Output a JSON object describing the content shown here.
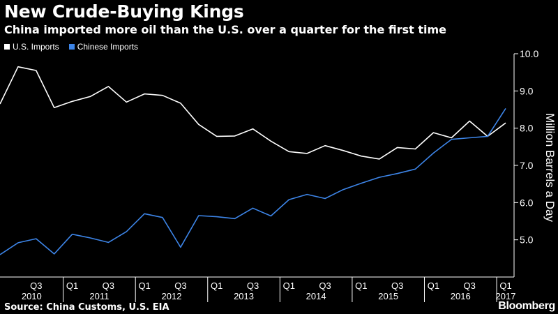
{
  "header": {
    "title": "New Crude-Buying Kings",
    "subtitle": "China imported more oil than the U.S. over a quarter for the first time"
  },
  "footer": {
    "source": "Source: China Customs, U.S. EIA",
    "logo": "Bloomberg"
  },
  "colors": {
    "background": "#000000",
    "us": "#ffffff",
    "china": "#3d85e8",
    "axis": "#ffffff"
  },
  "chart_data": {
    "type": "line",
    "x": [
      "2010-Q1",
      "2010-Q2",
      "2010-Q3",
      "2010-Q4",
      "2011-Q1",
      "2011-Q2",
      "2011-Q3",
      "2011-Q4",
      "2012-Q1",
      "2012-Q2",
      "2012-Q3",
      "2012-Q4",
      "2013-Q1",
      "2013-Q2",
      "2013-Q3",
      "2013-Q4",
      "2014-Q1",
      "2014-Q2",
      "2014-Q3",
      "2014-Q4",
      "2015-Q1",
      "2015-Q2",
      "2015-Q3",
      "2015-Q4",
      "2016-Q1",
      "2016-Q2",
      "2016-Q3",
      "2016-Q4",
      "2017-Q1"
    ],
    "series": [
      {
        "name": "U.S. Imports",
        "color": "#ffffff",
        "values": [
          8.65,
          9.65,
          9.55,
          8.55,
          8.72,
          8.85,
          9.12,
          8.7,
          8.92,
          8.88,
          8.67,
          8.1,
          7.78,
          7.79,
          7.98,
          7.65,
          7.37,
          7.32,
          7.53,
          7.4,
          7.25,
          7.17,
          7.48,
          7.44,
          7.88,
          7.74,
          8.19,
          7.78,
          8.14
        ]
      },
      {
        "name": "Chinese Imports",
        "color": "#3d85e8",
        "values": [
          4.6,
          4.92,
          5.03,
          4.62,
          5.15,
          5.05,
          4.93,
          5.22,
          5.7,
          5.6,
          4.8,
          5.65,
          5.62,
          5.57,
          5.85,
          5.64,
          6.08,
          6.22,
          6.11,
          6.35,
          6.52,
          6.68,
          6.78,
          6.9,
          7.33,
          7.7,
          7.74,
          7.78,
          8.53
        ]
      }
    ],
    "ylabel": "Million Barrels a Day",
    "ylim": [
      4.0,
      10.0
    ],
    "yticks": [
      {
        "value": 5,
        "label": "5.0"
      },
      {
        "value": 6,
        "label": "6.0"
      },
      {
        "value": 7,
        "label": "7.0"
      },
      {
        "value": 8,
        "label": "8.0"
      },
      {
        "value": 9,
        "label": "9.0"
      },
      {
        "value": 10,
        "label": "10.0"
      }
    ],
    "quarter_ticks": [
      {
        "index": 2,
        "label": "Q3"
      },
      {
        "index": 4,
        "label": "Q1"
      },
      {
        "index": 6,
        "label": "Q3"
      },
      {
        "index": 8,
        "label": "Q1"
      },
      {
        "index": 10,
        "label": "Q3"
      },
      {
        "index": 12,
        "label": "Q1"
      },
      {
        "index": 14,
        "label": "Q3"
      },
      {
        "index": 16,
        "label": "Q1"
      },
      {
        "index": 18,
        "label": "Q3"
      },
      {
        "index": 20,
        "label": "Q1"
      },
      {
        "index": 22,
        "label": "Q3"
      },
      {
        "index": 24,
        "label": "Q1"
      },
      {
        "index": 26,
        "label": "Q3"
      },
      {
        "index": 28,
        "label": "Q1"
      }
    ],
    "years": [
      {
        "label": "2010",
        "start": 0,
        "end": 4
      },
      {
        "label": "2011",
        "start": 4,
        "end": 8
      },
      {
        "label": "2012",
        "start": 8,
        "end": 12
      },
      {
        "label": "2013",
        "start": 12,
        "end": 16
      },
      {
        "label": "2014",
        "start": 16,
        "end": 20
      },
      {
        "label": "2015",
        "start": 20,
        "end": 24
      },
      {
        "label": "2016",
        "start": 24,
        "end": 28
      },
      {
        "label": "2017",
        "start": 28,
        "end": 29
      }
    ],
    "grid": false,
    "legend_position": "top-left"
  }
}
